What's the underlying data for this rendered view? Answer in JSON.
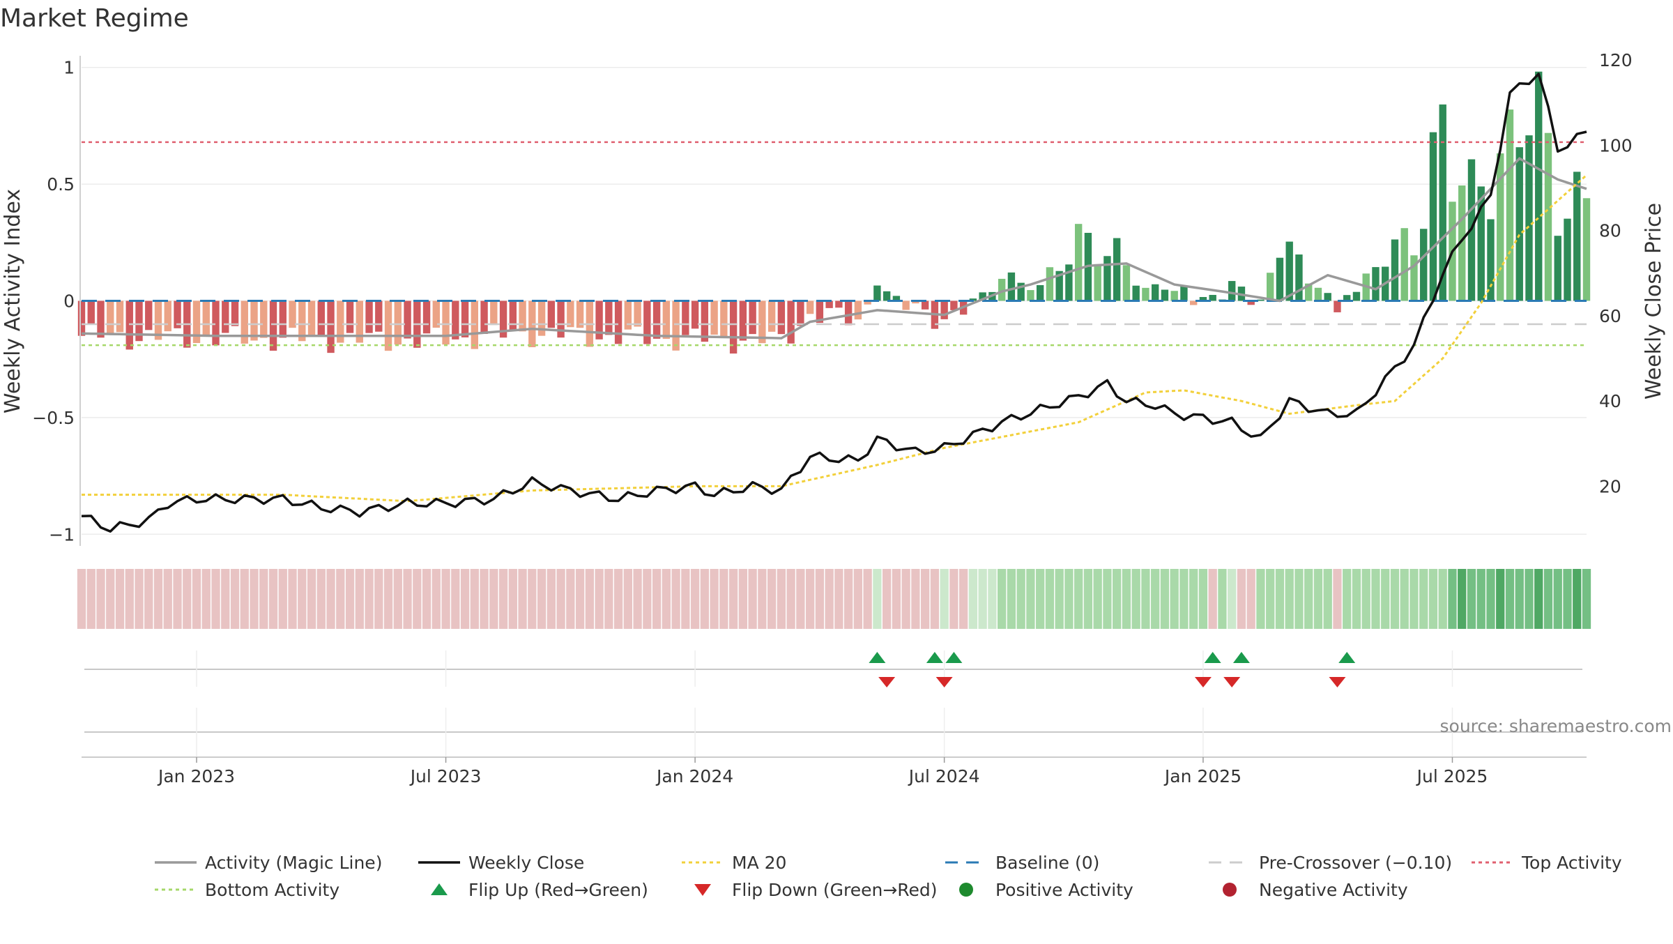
{
  "chart_data": {
    "type": "bar",
    "title": "Market Regime",
    "ylabel": "Weekly Activity Index",
    "y2label": "Weekly Close Price",
    "ylim": [
      -1.05,
      1.05
    ],
    "y2lim": [
      6,
      121
    ],
    "yticks": [
      1,
      0.5,
      0,
      -0.5,
      -1
    ],
    "ytick_labels": [
      "1",
      "0.5",
      "0",
      "−0.5",
      "−1"
    ],
    "y2ticks": [
      120,
      100,
      80,
      60,
      40,
      20
    ],
    "x_start": "2022-10-10",
    "x_end": "2025-10-13",
    "xtick_dates": [
      "2023-01-02",
      "2023-07-03",
      "2024-01-01",
      "2024-07-01",
      "2025-01-06",
      "2025-07-07"
    ],
    "xtick_labels": [
      "Jan 2023",
      "Jul 2023",
      "Jan 2024",
      "Jul 2024",
      "Jan 2025",
      "Jul 2025"
    ],
    "reference_lines": {
      "baseline": 0,
      "pre_crossover": -0.1,
      "top_activity": 0.68,
      "bottom_activity": -0.19
    },
    "activity_anchors": [
      [
        "2022-10-10",
        -0.15
      ],
      [
        "2023-01-16",
        -0.16
      ],
      [
        "2023-06-12",
        -0.17
      ],
      [
        "2023-09-04",
        -0.14
      ],
      [
        "2023-12-04",
        -0.16
      ],
      [
        "2024-03-04",
        -0.17
      ],
      [
        "2024-03-25",
        -0.06
      ],
      [
        "2024-04-29",
        -0.08
      ],
      [
        "2024-05-13",
        0.06
      ],
      [
        "2024-05-27",
        -0.02
      ],
      [
        "2024-06-17",
        -0.04
      ],
      [
        "2024-07-01",
        -0.08
      ],
      [
        "2024-07-22",
        -0.03
      ],
      [
        "2024-08-12",
        0.1
      ],
      [
        "2024-09-09",
        0.06
      ],
      [
        "2024-10-07",
        0.26
      ],
      [
        "2024-11-04",
        0.2
      ],
      [
        "2024-11-25",
        0.05
      ],
      [
        "2024-12-16",
        0.06
      ],
      [
        "2025-01-06",
        0.02
      ],
      [
        "2025-01-27",
        0.04
      ],
      [
        "2025-02-17",
        0.0
      ],
      [
        "2025-03-03",
        0.27
      ],
      [
        "2025-03-24",
        0.1
      ],
      [
        "2025-04-14",
        0.01
      ],
      [
        "2025-04-28",
        0.02
      ],
      [
        "2025-05-19",
        0.22
      ],
      [
        "2025-06-09",
        0.25
      ],
      [
        "2025-06-30",
        0.72
      ],
      [
        "2025-07-21",
        0.45
      ],
      [
        "2025-08-18",
        0.62
      ],
      [
        "2025-09-01",
        0.98
      ],
      [
        "2025-09-22",
        0.4
      ],
      [
        "2025-10-13",
        0.42
      ]
    ],
    "magic_line_anchors": [
      [
        "2022-10-10",
        -0.14
      ],
      [
        "2023-01-16",
        -0.15
      ],
      [
        "2023-07-03",
        -0.15
      ],
      [
        "2023-09-04",
        -0.12
      ],
      [
        "2023-12-04",
        -0.15
      ],
      [
        "2024-03-04",
        -0.16
      ],
      [
        "2024-03-25",
        -0.09
      ],
      [
        "2024-05-13",
        -0.04
      ],
      [
        "2024-07-01",
        -0.06
      ],
      [
        "2024-08-12",
        0.04
      ],
      [
        "2024-09-02",
        0.07
      ],
      [
        "2024-10-14",
        0.15
      ],
      [
        "2024-11-11",
        0.16
      ],
      [
        "2024-12-16",
        0.07
      ],
      [
        "2025-01-20",
        0.04
      ],
      [
        "2025-03-03",
        0.0
      ],
      [
        "2025-04-07",
        0.11
      ],
      [
        "2025-05-12",
        0.05
      ],
      [
        "2025-06-09",
        0.15
      ],
      [
        "2025-07-14",
        0.35
      ],
      [
        "2025-08-25",
        0.61
      ],
      [
        "2025-09-22",
        0.52
      ],
      [
        "2025-10-13",
        0.48
      ]
    ],
    "close_anchors": [
      [
        "2022-10-10",
        13
      ],
      [
        "2022-10-31",
        10
      ],
      [
        "2022-11-28",
        12
      ],
      [
        "2022-12-12",
        16
      ],
      [
        "2023-01-02",
        17
      ],
      [
        "2023-02-06",
        17
      ],
      [
        "2023-03-06",
        17
      ],
      [
        "2023-04-03",
        15
      ],
      [
        "2023-05-01",
        14
      ],
      [
        "2023-06-05",
        16
      ],
      [
        "2023-07-03",
        16
      ],
      [
        "2023-08-07",
        17
      ],
      [
        "2023-09-04",
        21
      ],
      [
        "2023-10-02",
        19
      ],
      [
        "2023-11-06",
        17
      ],
      [
        "2023-12-04",
        19
      ],
      [
        "2024-01-01",
        20
      ],
      [
        "2024-01-15",
        18
      ],
      [
        "2024-02-12",
        20
      ],
      [
        "2024-03-04",
        19
      ],
      [
        "2024-03-25",
        27
      ],
      [
        "2024-04-29",
        26
      ],
      [
        "2024-05-13",
        31
      ],
      [
        "2024-06-10",
        28
      ],
      [
        "2024-07-01",
        29
      ],
      [
        "2024-07-22",
        32
      ],
      [
        "2024-08-12",
        35
      ],
      [
        "2024-09-09",
        38
      ],
      [
        "2024-10-07",
        41
      ],
      [
        "2024-10-28",
        44
      ],
      [
        "2024-11-11",
        40
      ],
      [
        "2024-12-02",
        39
      ],
      [
        "2024-12-16",
        37
      ],
      [
        "2025-01-06",
        36
      ],
      [
        "2025-01-27",
        35
      ],
      [
        "2025-02-17",
        31
      ],
      [
        "2025-03-10",
        40
      ],
      [
        "2025-04-07",
        37
      ],
      [
        "2025-04-28",
        37
      ],
      [
        "2025-05-19",
        45
      ],
      [
        "2025-06-09",
        53
      ],
      [
        "2025-06-30",
        70
      ],
      [
        "2025-07-14",
        78
      ],
      [
        "2025-08-04",
        88
      ],
      [
        "2025-08-18",
        112
      ],
      [
        "2025-09-08",
        117
      ],
      [
        "2025-09-22",
        99
      ],
      [
        "2025-10-13",
        103
      ]
    ],
    "ma20_anchors": [
      [
        "2022-10-10",
        18
      ],
      [
        "2023-03-06",
        18
      ],
      [
        "2023-06-05",
        16.5
      ],
      [
        "2023-09-04",
        19
      ],
      [
        "2024-01-01",
        20
      ],
      [
        "2024-03-04",
        20
      ],
      [
        "2024-05-13",
        25
      ],
      [
        "2024-07-01",
        29
      ],
      [
        "2024-10-07",
        35
      ],
      [
        "2024-11-25",
        42
      ],
      [
        "2024-12-23",
        42.5
      ],
      [
        "2025-02-03",
        40
      ],
      [
        "2025-03-10",
        37
      ],
      [
        "2025-04-28",
        39
      ],
      [
        "2025-05-26",
        40
      ],
      [
        "2025-06-30",
        50
      ],
      [
        "2025-07-28",
        63
      ],
      [
        "2025-08-25",
        79
      ],
      [
        "2025-10-13",
        93
      ]
    ],
    "regime_anchors": [
      [
        "2022-10-10",
        -0.5
      ],
      [
        "2024-05-06",
        -0.5
      ],
      [
        "2024-05-13",
        0.3
      ],
      [
        "2024-05-20",
        -0.5
      ],
      [
        "2024-06-24",
        -0.5
      ],
      [
        "2024-07-01",
        0.3
      ],
      [
        "2024-07-08",
        -0.5
      ],
      [
        "2024-07-29",
        0.3
      ],
      [
        "2024-10-07",
        0.6
      ],
      [
        "2025-01-06",
        0.35
      ],
      [
        "2025-01-13",
        -0.5
      ],
      [
        "2025-01-20",
        0.35
      ],
      [
        "2025-02-10",
        -0.5
      ],
      [
        "2025-02-17",
        0.6
      ],
      [
        "2025-04-07",
        0.6
      ],
      [
        "2025-04-14",
        -0.5
      ],
      [
        "2025-04-21",
        0.4
      ],
      [
        "2025-06-30",
        0.6
      ],
      [
        "2025-07-07",
        1.0
      ],
      [
        "2025-10-13",
        1.0
      ]
    ],
    "flip_up_dates": [
      "2024-05-13",
      "2024-06-24",
      "2024-07-08",
      "2025-01-13",
      "2025-02-03",
      "2025-04-21"
    ],
    "flip_down_dates": [
      "2024-05-20",
      "2024-07-01",
      "2025-01-06",
      "2025-01-27",
      "2025-04-14"
    ],
    "legend": [
      {
        "label": "Activity (Magic Line)",
        "kind": "line",
        "color": "#999999"
      },
      {
        "label": "Weekly Close",
        "kind": "line",
        "color": "#111111"
      },
      {
        "label": "MA 20",
        "kind": "dotted",
        "color": "#f2d03b"
      },
      {
        "label": "Baseline (0)",
        "kind": "dashed",
        "color": "#2a7ab4"
      },
      {
        "label": "Pre-Crossover (−0.10)",
        "kind": "dashed",
        "color": "#cccccc"
      },
      {
        "label": "Top Activity",
        "kind": "dotted",
        "color": "#e06070"
      },
      {
        "label": "Bottom Activity",
        "kind": "dotted",
        "color": "#a6d86a"
      },
      {
        "label": "Flip Up (Red→Green)",
        "kind": "tri-up",
        "color": "#1a9a4c"
      },
      {
        "label": "Flip Down (Green→Red)",
        "kind": "tri-down",
        "color": "#d62828"
      },
      {
        "label": "Positive Activity",
        "kind": "circle",
        "color": "#1e8a2e"
      },
      {
        "label": "Negative Activity",
        "kind": "circle",
        "color": "#b22230"
      }
    ],
    "source_text": "source: sharemaestro.com",
    "colors": {
      "pos_dark": "#2e8b57",
      "pos_light": "#7cc27c",
      "neg_dark": "#cf5a5e",
      "neg_light": "#eba386",
      "close": "#111111",
      "magic": "#999999",
      "ma20": "#f2d03b",
      "baseline": "#2a7ab4",
      "pre_crossover": "#cccccc",
      "top": "#e06070",
      "bottom": "#a6d86a",
      "flip_up": "#1a9a4c",
      "flip_down": "#d62828",
      "grid": "#ececec"
    }
  }
}
